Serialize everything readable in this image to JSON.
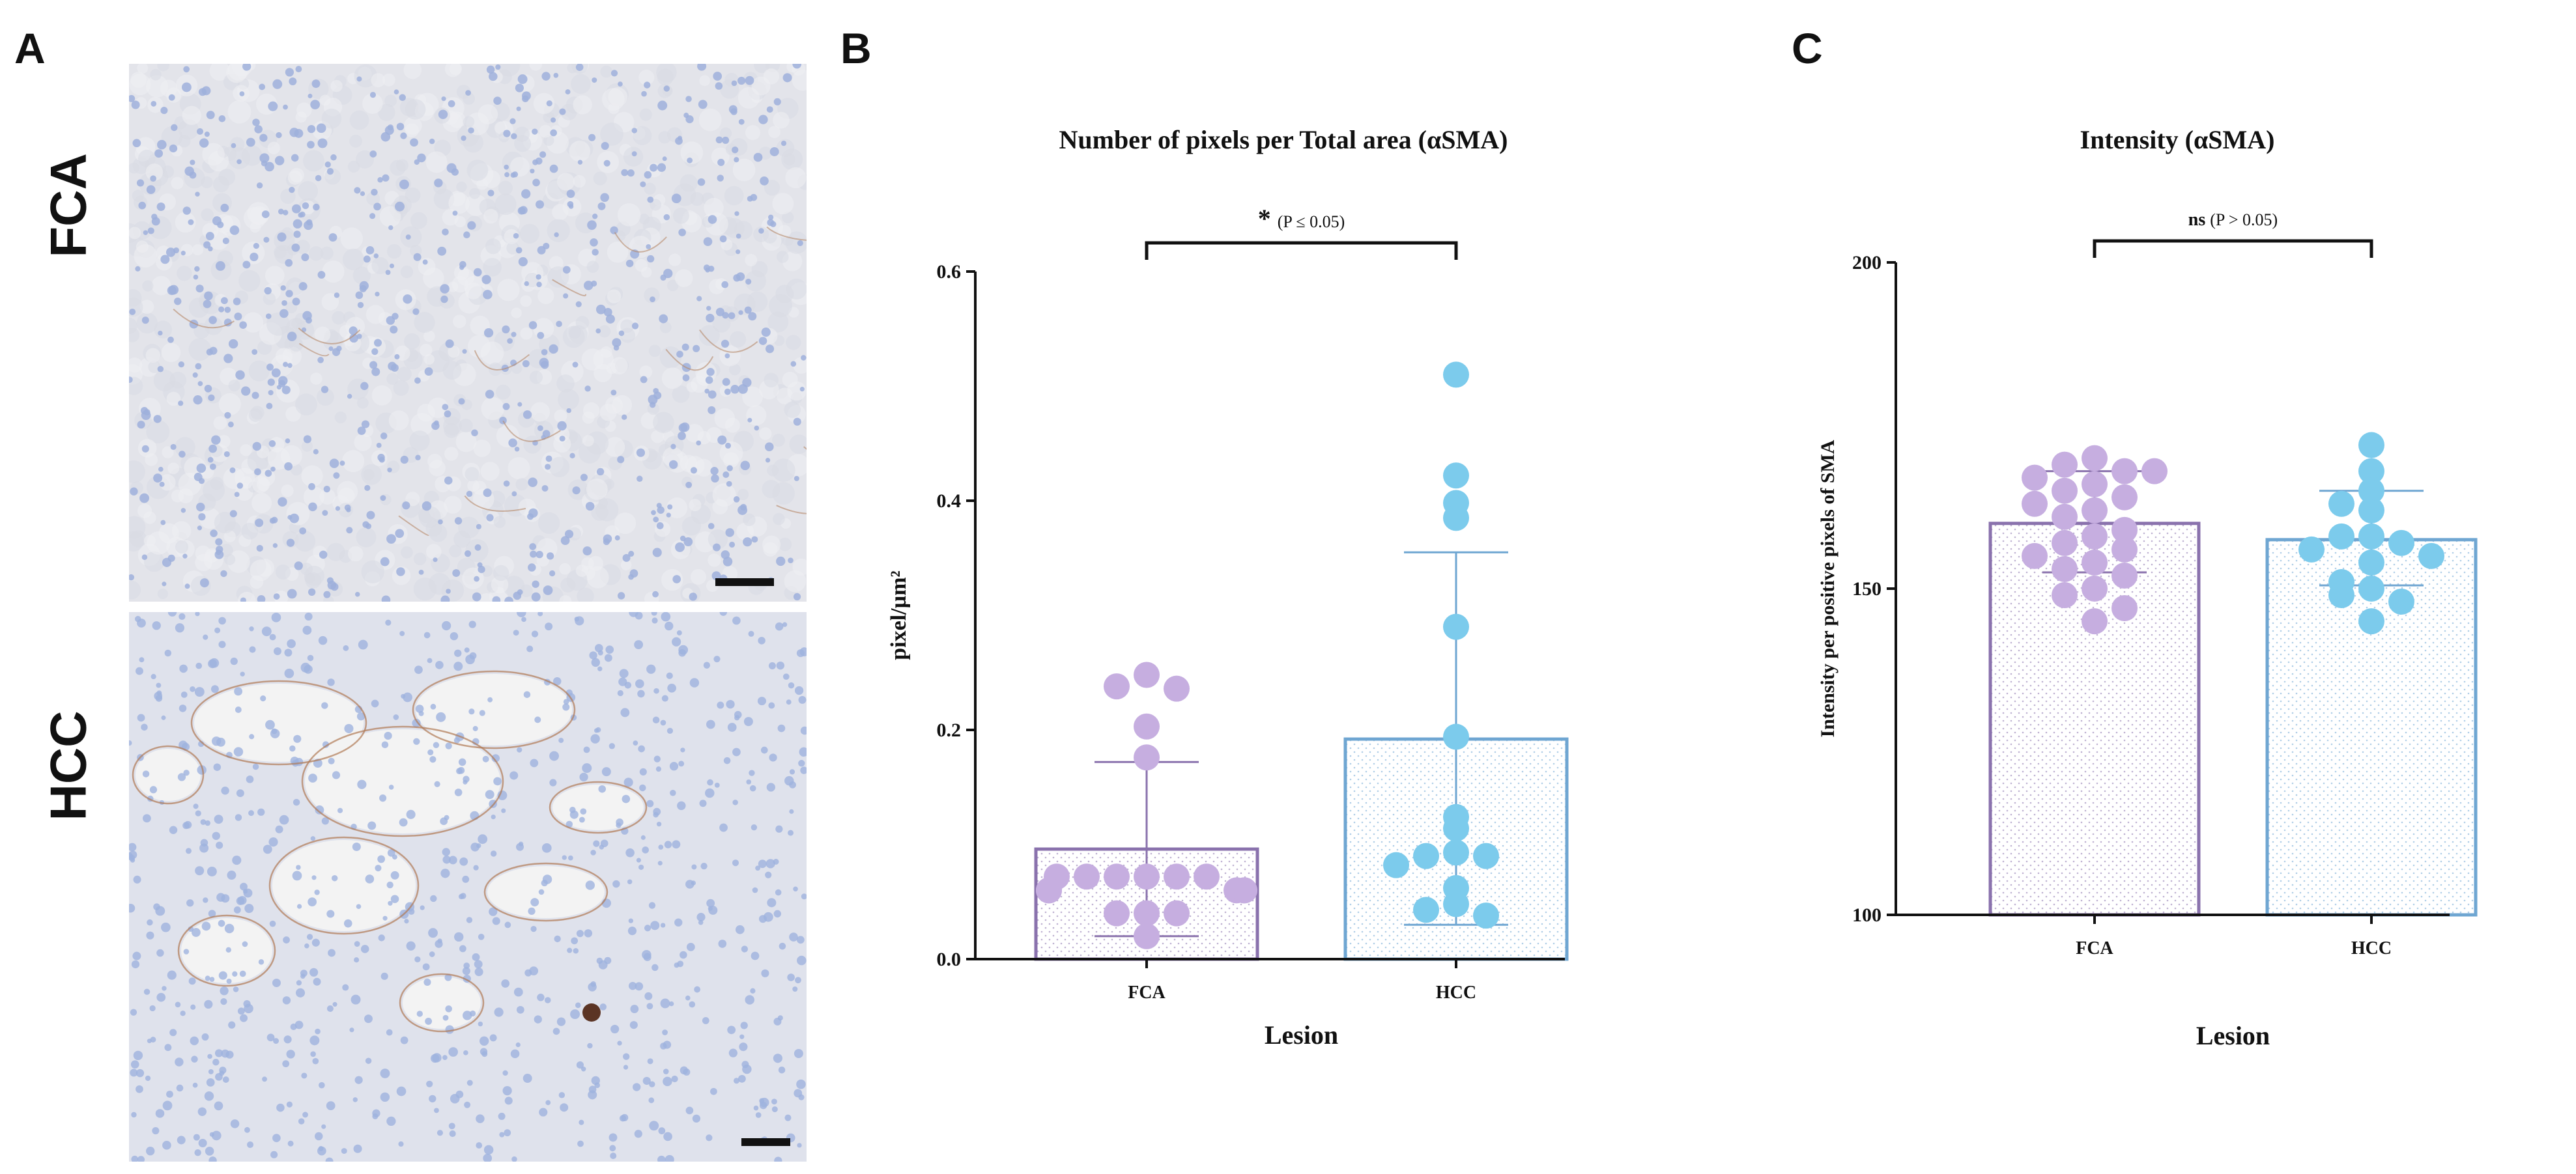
{
  "panels": {
    "a": "A",
    "b": "B",
    "c": "C"
  },
  "micrographs": {
    "top_label": "FCA",
    "bottom_label": "HCC"
  },
  "chart_data": [
    {
      "type": "bar",
      "panel": "B",
      "title": "Number of pixels per Total area (αSMA)",
      "xlabel": "Lesion",
      "ylabel": "pixel/µm²",
      "categories": [
        "FCA",
        "HCC"
      ],
      "values": [
        0.096,
        0.192
      ],
      "error_upper": [
        0.172,
        0.355
      ],
      "error_lower": [
        0.02,
        0.03
      ],
      "ylim": [
        0.0,
        0.6
      ],
      "yticks": [
        "0.0",
        "0.2",
        "0.4",
        "0.6"
      ],
      "points": [
        [
          0.248,
          0.238,
          0.236,
          0.203,
          0.176,
          0.072,
          0.072,
          0.072,
          0.072,
          0.072,
          0.072,
          0.06,
          0.06,
          0.06,
          0.06,
          0.06,
          0.06,
          0.04,
          0.04,
          0.04,
          0.02
        ],
        [
          0.51,
          0.422,
          0.398,
          0.385,
          0.29,
          0.194,
          0.124,
          0.114,
          0.093,
          0.09,
          0.09,
          0.082,
          0.062,
          0.048,
          0.043,
          0.038
        ]
      ],
      "significance": {
        "symbol": "*",
        "text": "(P ≤ 0.05)"
      },
      "colors": {
        "FCA": "#c6aee0",
        "HCC": "#7ccbec",
        "FCA_edge": "#8a72ad",
        "HCC_edge": "#6fa6d2"
      }
    },
    {
      "type": "bar",
      "panel": "C",
      "title": "Intensity (αSMA)",
      "xlabel": "Lesion",
      "ylabel": "Intensity per positive pixels of SMA",
      "categories": [
        "FCA",
        "HCC"
      ],
      "values": [
        160,
        157.5
      ],
      "error_upper": [
        168,
        165
      ],
      "error_lower": [
        152.5,
        150.5
      ],
      "ylim": [
        100,
        200
      ],
      "yticks": [
        "100",
        "150",
        "200"
      ],
      "points": [
        [
          170,
          169,
          168,
          167,
          166,
          165,
          168,
          164,
          163,
          162,
          161,
          159,
          158,
          157,
          156,
          155,
          154,
          153,
          152,
          150,
          149,
          147,
          145
        ],
        [
          172,
          168,
          165,
          163,
          162,
          158,
          158,
          157,
          156,
          155,
          154,
          151,
          150,
          149,
          148,
          145
        ]
      ],
      "significance": {
        "symbol": "ns",
        "text": "(P > 0.05)"
      },
      "colors": {
        "FCA": "#c6aee0",
        "HCC": "#7ccbec",
        "FCA_edge": "#8a72ad",
        "HCC_edge": "#6fa6d2"
      }
    }
  ]
}
